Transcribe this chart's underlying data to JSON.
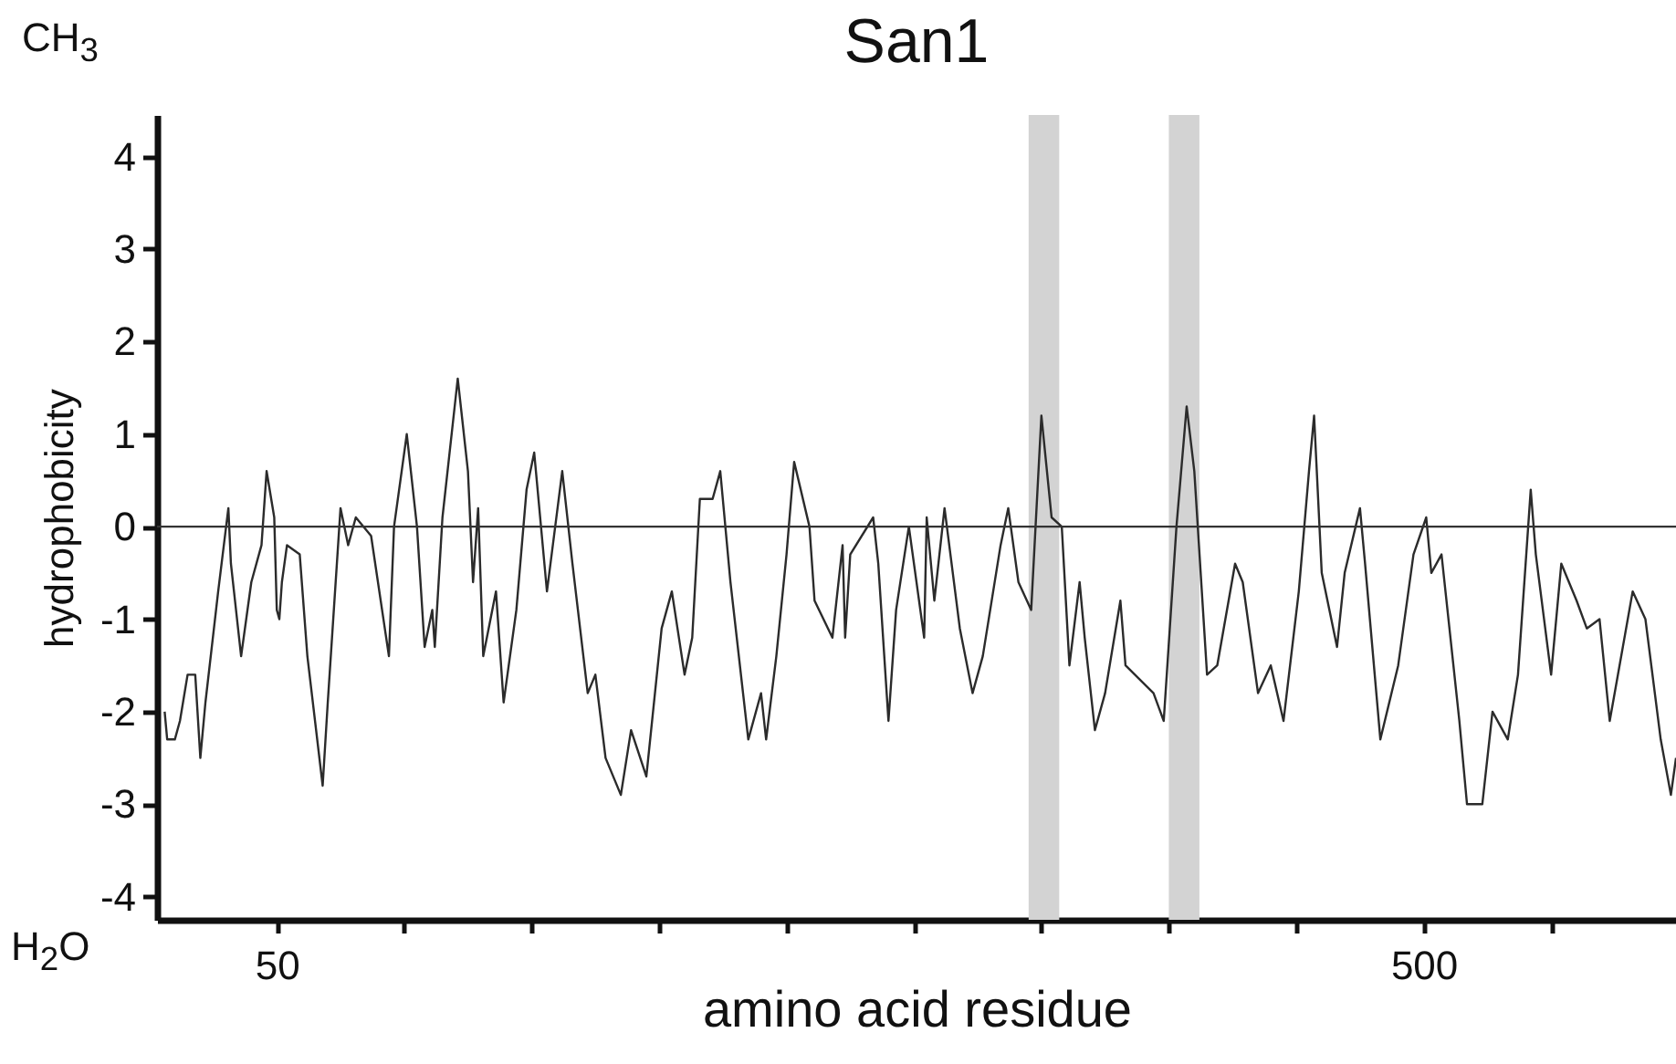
{
  "chart_data": {
    "type": "line",
    "title": "San1",
    "xlabel": "amino acid residue",
    "ylabel": "hydrophobicity",
    "annotations": [
      "CH$_{3}$",
      "H$_{2}$O"
    ],
    "xlim": [
      3,
      599
    ],
    "xticks": [
      50,
      {
        "value": 100,
        "label": null
      },
      {
        "value": 150,
        "label": null
      },
      {
        "value": 200,
        "label": null
      },
      {
        "value": 250,
        "label": null
      },
      {
        "value": 300,
        "label": null
      },
      {
        "value": 350,
        "label": null
      },
      {
        "value": 400,
        "label": null
      },
      {
        "value": 450,
        "label": null
      },
      500,
      {
        "value": 550,
        "label": null
      }
    ],
    "ylim": [
      -4.25,
      4.45
    ],
    "yticks": [
      -4,
      -3,
      -2,
      -1,
      0,
      1,
      2,
      3,
      4
    ],
    "ref_lines": [
      {
        "axis": "y",
        "value": 0,
        "color": "#333333"
      }
    ],
    "bands": [
      {
        "axis": "x",
        "from": 345,
        "to": 357,
        "color": "#d3d3d3"
      },
      {
        "axis": "x",
        "from": 400,
        "to": 412,
        "color": "#d3d3d3"
      }
    ],
    "series": [
      {
        "color": "#2b2b2b",
        "x": [
          6,
          7,
          10,
          12,
          15,
          18,
          20,
          22,
          27,
          31,
          32,
          36,
          40,
          44,
          46,
          49,
          50,
          51,
          52,
          54,
          59,
          62,
          68,
          70,
          75,
          78,
          81,
          87,
          94,
          96,
          101,
          105,
          108,
          111,
          112,
          115,
          121,
          125,
          127,
          129,
          131,
          136,
          139,
          144,
          148,
          151,
          156,
          162,
          166,
          172,
          175,
          179,
          185,
          189,
          195,
          201,
          205,
          210,
          213,
          216,
          221,
          224,
          228,
          235,
          240,
          242,
          246,
          250,
          253,
          259,
          261,
          268,
          272,
          273,
          275,
          284,
          286,
          290,
          293,
          298,
          304,
          305,
          308,
          312,
          318,
          323,
          327,
          334,
          337,
          341,
          346,
          350,
          354,
          358,
          361,
          365,
          367,
          371,
          375,
          381,
          383,
          394,
          398,
          403,
          407,
          410,
          415,
          419,
          426,
          429,
          435,
          440,
          445,
          451,
          455,
          457,
          460,
          466,
          469,
          475,
          477,
          483,
          490,
          496,
          501,
          503,
          507,
          514,
          517,
          523,
          527,
          533,
          537,
          542,
          544,
          550,
          554,
          560,
          564,
          569,
          573,
          582,
          587,
          593,
          597,
          599
        ],
        "values": [
          -2.0,
          -2.3,
          -2.3,
          -2.1,
          -1.6,
          -1.6,
          -2.5,
          -1.9,
          -0.7,
          0.2,
          -0.4,
          -1.4,
          -0.6,
          -0.2,
          0.6,
          0.1,
          -0.9,
          -1.0,
          -0.6,
          -0.2,
          -0.3,
          -1.4,
          -2.8,
          -1.9,
          0.2,
          -0.2,
          0.1,
          -0.1,
          -1.4,
          0.0,
          1.0,
          0.0,
          -1.3,
          -0.9,
          -1.3,
          0.1,
          1.6,
          0.6,
          -0.6,
          0.2,
          -1.4,
          -0.7,
          -1.9,
          -0.9,
          0.4,
          0.8,
          -0.7,
          0.6,
          -0.4,
          -1.8,
          -1.6,
          -2.5,
          -2.9,
          -2.2,
          -2.7,
          -1.1,
          -0.7,
          -1.6,
          -1.2,
          0.3,
          0.3,
          0.6,
          -0.6,
          -2.3,
          -1.8,
          -2.3,
          -1.4,
          -0.3,
          0.7,
          0.0,
          -0.8,
          -1.2,
          -0.2,
          -1.2,
          -0.3,
          0.1,
          -0.4,
          -2.1,
          -0.9,
          0.0,
          -1.2,
          0.1,
          -0.8,
          0.2,
          -1.1,
          -1.8,
          -1.4,
          -0.2,
          0.2,
          -0.6,
          -0.9,
          1.2,
          0.1,
          0.0,
          -1.5,
          -0.6,
          -1.2,
          -2.2,
          -1.8,
          -0.8,
          -1.5,
          -1.8,
          -2.1,
          0.0,
          1.3,
          0.6,
          -1.6,
          -1.5,
          -0.4,
          -0.6,
          -1.8,
          -1.5,
          -2.1,
          -0.7,
          0.6,
          1.2,
          -0.5,
          -1.3,
          -0.5,
          0.2,
          -0.4,
          -2.3,
          -1.5,
          -0.3,
          0.1,
          -0.5,
          -0.3,
          -2.1,
          -3.0,
          -3.0,
          -2.0,
          -2.3,
          -1.6,
          0.4,
          -0.3,
          -1.6,
          -0.4,
          -0.8,
          -1.1,
          -1.0,
          -2.1,
          -0.7,
          -1.0,
          -2.3,
          -2.9,
          -2.5
        ]
      }
    ]
  }
}
